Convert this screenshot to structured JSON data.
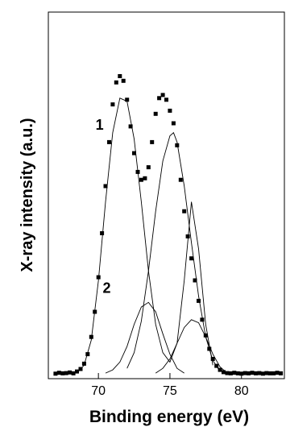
{
  "chart_data": {
    "type": "scatter",
    "title": "",
    "xlabel": "Binding energy (eV)",
    "ylabel": "X-ray intensity (a.u.)",
    "xlim": [
      66.5,
      83.0
    ],
    "ylim": [
      0,
      1.0
    ],
    "x_ticks": [
      70,
      75,
      80
    ],
    "x_tick_labels": [
      "70",
      "75",
      "80"
    ],
    "y_ticks_shown": false,
    "grid": false,
    "annotations": [
      {
        "text": "1",
        "x": 69.8,
        "y": 0.78
      },
      {
        "text": "2",
        "x": 70.3,
        "y": 0.26
      }
    ],
    "series": [
      {
        "kind": "points",
        "x": [
          67.0,
          67.25,
          67.5,
          67.75,
          68.0,
          68.25,
          68.5,
          68.75,
          69.0,
          69.25,
          69.5,
          69.75,
          70.0,
          70.25,
          70.5,
          70.75,
          71.0,
          71.25,
          71.5,
          71.75,
          72.0,
          72.25,
          72.5,
          72.75,
          73.0,
          73.25,
          73.5,
          73.75,
          74.0,
          74.25,
          74.5,
          74.75,
          75.0,
          75.25,
          75.5,
          75.75,
          76.0,
          76.25,
          76.5,
          76.75,
          77.0,
          77.25,
          77.5,
          77.75,
          78.0,
          78.25,
          78.5,
          78.75,
          79.0,
          79.25,
          79.5,
          79.75,
          80.0,
          80.25,
          80.5,
          80.75,
          81.0,
          81.25,
          81.5,
          81.75,
          82.0,
          82.25,
          82.5,
          82.75
        ],
        "y": [
          0.003,
          0.006,
          0.004,
          0.005,
          0.007,
          0.004,
          0.01,
          0.018,
          0.035,
          0.065,
          0.12,
          0.2,
          0.31,
          0.45,
          0.6,
          0.74,
          0.86,
          0.93,
          0.95,
          0.935,
          0.875,
          0.79,
          0.705,
          0.645,
          0.62,
          0.625,
          0.66,
          0.74,
          0.83,
          0.88,
          0.89,
          0.875,
          0.84,
          0.8,
          0.73,
          0.62,
          0.52,
          0.44,
          0.37,
          0.3,
          0.235,
          0.175,
          0.125,
          0.082,
          0.05,
          0.028,
          0.015,
          0.008,
          0.005,
          0.004,
          0.006,
          0.004,
          0.003,
          0.005,
          0.004,
          0.006,
          0.004,
          0.005,
          0.003,
          0.005,
          0.004,
          0.004,
          0.006,
          0.004
        ]
      },
      {
        "name": "1",
        "kind": "line",
        "x": [
          68.5,
          69.0,
          69.5,
          70.0,
          70.5,
          71.0,
          71.5,
          72.0,
          72.5,
          73.0,
          73.5,
          74.0,
          74.5,
          75.0,
          75.5,
          76.0,
          76.5,
          77.0,
          77.5,
          78.0
        ],
        "y": [
          0.005,
          0.03,
          0.11,
          0.3,
          0.55,
          0.77,
          0.88,
          0.87,
          0.75,
          0.55,
          0.33,
          0.16,
          0.07,
          0.04,
          0.1,
          0.3,
          0.55,
          0.4,
          0.16,
          0.03
        ]
      },
      {
        "name": "1",
        "kind": "line",
        "x": [
          72.0,
          72.5,
          73.0,
          73.5,
          74.0,
          74.5,
          75.0,
          75.25,
          75.5,
          76.0,
          76.5,
          77.0,
          77.5,
          78.0,
          78.5
        ],
        "y": [
          0.02,
          0.07,
          0.17,
          0.33,
          0.52,
          0.68,
          0.76,
          0.77,
          0.74,
          0.6,
          0.42,
          0.25,
          0.12,
          0.045,
          0.01
        ]
      },
      {
        "name": "2",
        "kind": "line",
        "x": [
          70.5,
          71.0,
          71.5,
          72.0,
          72.5,
          73.0,
          73.5,
          74.0,
          74.5,
          75.0,
          75.5,
          76.0
        ],
        "y": [
          0.005,
          0.015,
          0.04,
          0.09,
          0.16,
          0.215,
          0.23,
          0.2,
          0.13,
          0.065,
          0.02,
          0.005
        ]
      },
      {
        "name": "2",
        "kind": "line",
        "x": [
          74.0,
          74.5,
          75.0,
          75.5,
          76.0,
          76.5,
          77.0,
          77.5,
          78.0,
          78.5,
          79.0
        ],
        "y": [
          0.005,
          0.02,
          0.05,
          0.1,
          0.15,
          0.175,
          0.165,
          0.12,
          0.065,
          0.025,
          0.005
        ]
      }
    ]
  }
}
